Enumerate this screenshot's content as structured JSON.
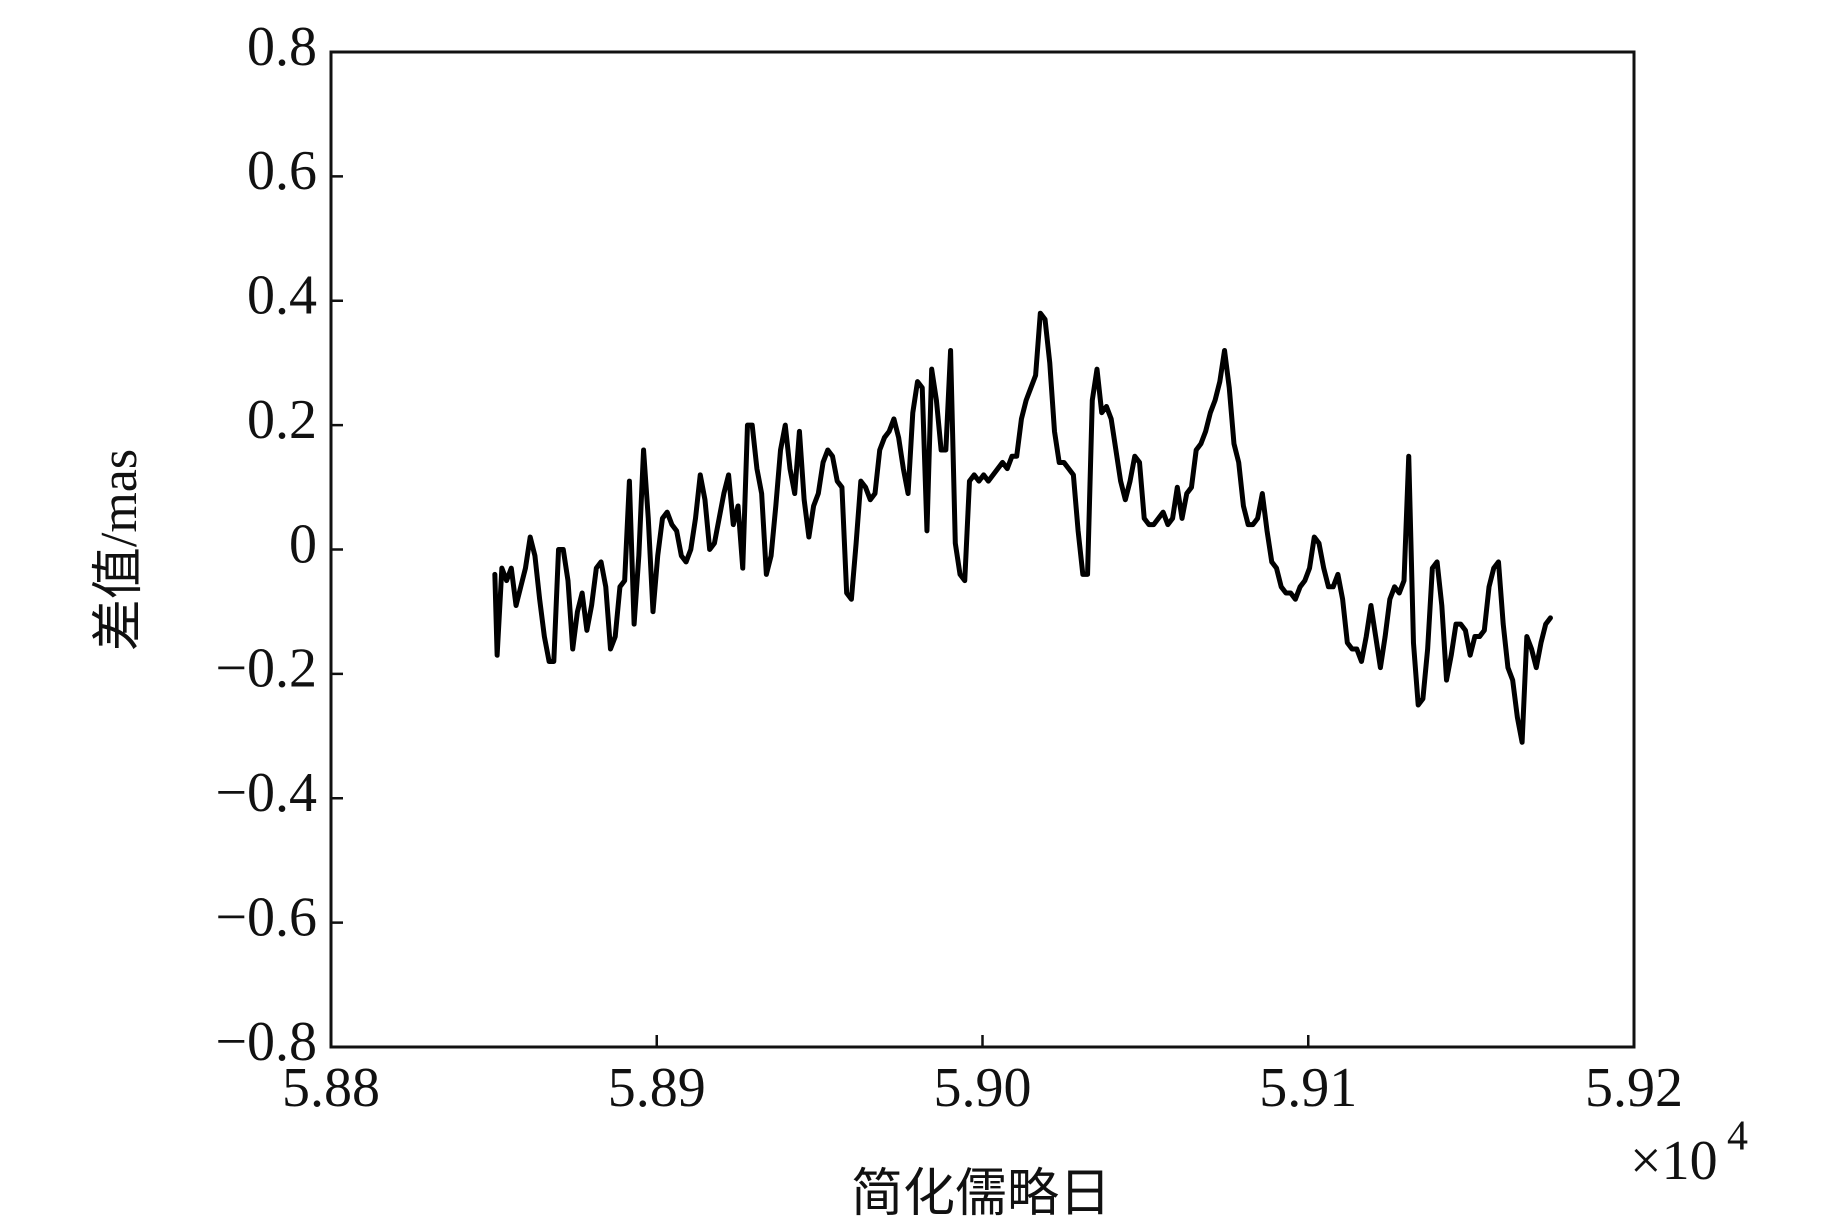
{
  "chart_data": {
    "type": "line",
    "xlabel": "简化儒略日",
    "ylabel": "差值/mas",
    "x_offset_text": "×10",
    "x_offset_exponent": "4",
    "xlim": [
      58800,
      59200
    ],
    "xticks": [
      {
        "value": 58800,
        "label": "5.88"
      },
      {
        "value": 58900,
        "label": "5.89"
      },
      {
        "value": 59000,
        "label": "5.90"
      },
      {
        "value": 59100,
        "label": "5.91"
      },
      {
        "value": 59200,
        "label": "5.92"
      }
    ],
    "ylim": [
      -0.8,
      0.8
    ],
    "yticks": [
      {
        "value": -0.8,
        "label": "−0.8"
      },
      {
        "value": -0.6,
        "label": "−0.6"
      },
      {
        "value": -0.4,
        "label": "−0.4"
      },
      {
        "value": -0.2,
        "label": "−0.2"
      },
      0,
      0.2,
      0.4,
      0.6,
      0.8
    ],
    "grid": false,
    "x": [
      58850.3,
      58851,
      58852.45,
      58853.9,
      58855.35,
      58856.8,
      58858.25,
      58859.7,
      58861.15,
      58862.6,
      58864.05,
      58865.5,
      58866.95,
      58868.4,
      58869.85,
      58871.3,
      58872.75,
      58874.2,
      58875.65,
      58877.1,
      58878.55,
      58880,
      58881.45,
      58882.9,
      58884.35,
      58885.8,
      58887.25,
      58888.7,
      58890.15,
      58891.6,
      58893.05,
      58894.5,
      58895.95,
      58897.4,
      58898.85,
      58900.3,
      58901.75,
      58903.2,
      58904.65,
      58906.1,
      58907.55,
      58909,
      58910.45,
      58911.9,
      58913.35,
      58914.8,
      58916.25,
      58917.7,
      58919.15,
      58920.6,
      58922.05,
      58923.5,
      58924.95,
      58926.4,
      58927.85,
      58929.3,
      58930.75,
      58932.2,
      58933.65,
      58935.1,
      58936.55,
      58938,
      58939.45,
      58940.9,
      58942.35,
      58943.8,
      58945.25,
      58946.7,
      58948.15,
      58949.6,
      58951.05,
      58952.5,
      58953.95,
      58955.4,
      58956.85,
      58958.3,
      58959.75,
      58961.2,
      58962.65,
      58964.1,
      58965.55,
      58967,
      58968.45,
      58969.9,
      58971.35,
      58972.8,
      58974.25,
      58975.7,
      58977.15,
      58978.6,
      58980.05,
      58981.5,
      58982.95,
      58984.4,
      58985.85,
      58987.3,
      58988.75,
      58990.2,
      58991.65,
      58993.1,
      58994.55,
      58996,
      58997.45,
      58998.9,
      59000.35,
      59001.8,
      59003.25,
      59004.7,
      59006.15,
      59007.6,
      59009.05,
      59010.5,
      59011.95,
      59013.4,
      59014.85,
      59016.3,
      59017.75,
      59019.2,
      59020.65,
      59022.1,
      59023.55,
      59025,
      59026.45,
      59027.9,
      59029.35,
      59030.8,
      59032.25,
      59033.7,
      59035.15,
      59036.6,
      59038.05,
      59039.5,
      59040.95,
      59042.4,
      59043.85,
      59045.3,
      59046.75,
      59048.2,
      59049.65,
      59051.1,
      59052.55,
      59054,
      59055.45,
      59056.9,
      59058.35,
      59059.8,
      59061.25,
      59062.7,
      59064.15,
      59065.6,
      59067.05,
      59068.5,
      59069.95,
      59071.4,
      59072.85,
      59074.3,
      59075.75,
      59077.2,
      59078.65,
      59080.1,
      59081.55,
      59083,
      59084.45,
      59085.9,
      59087.35,
      59088.8,
      59090.25,
      59091.7,
      59093.15,
      59094.6,
      59096.05,
      59097.5,
      59098.95,
      59100.4,
      59101.85,
      59103.3,
      59104.75,
      59106.2,
      59107.65,
      59109.1,
      59110.55,
      59112,
      59113.45,
      59114.9,
      59116.35,
      59117.8,
      59119.25,
      59120.7,
      59122.15,
      59123.6,
      59125.05,
      59126.5,
      59127.95,
      59129.4,
      59130.85,
      59132.3,
      59133.75,
      59135.2,
      59136.65,
      59138.1,
      59139.55,
      59141,
      59142.45,
      59143.9,
      59145.35,
      59146.8,
      59148.25,
      59149.7,
      59151.15,
      59152.6,
      59154.05,
      59155.5,
      59156.95,
      59158.4,
      59159.85,
      59161.3,
      59162.75,
      59164.2,
      59165.65,
      59167.1,
      59168.55,
      59170,
      59171.45,
      59172.9,
      59174.35
    ],
    "series": [
      {
        "color": "#000000",
        "values": [
          -0.04,
          -0.17,
          -0.03,
          -0.05,
          -0.03,
          -0.09,
          -0.06,
          -0.03,
          0.02,
          -0.01,
          -0.08,
          -0.14,
          -0.18,
          -0.18,
          0,
          0,
          -0.05,
          -0.16,
          -0.1,
          -0.07,
          -0.13,
          -0.09,
          -0.03,
          -0.02,
          -0.06,
          -0.16,
          -0.14,
          -0.06,
          -0.05,
          0.11,
          -0.12,
          -0.01,
          0.16,
          0.05,
          -0.1,
          -0.01,
          0.05,
          0.06,
          0.04,
          0.03,
          -0.01,
          -0.02,
          0,
          0.05,
          0.12,
          0.08,
          0,
          0.01,
          0.05,
          0.09,
          0.12,
          0.04,
          0.07,
          -0.03,
          0.2,
          0.2,
          0.13,
          0.09,
          -0.04,
          -0.01,
          0.07,
          0.16,
          0.2,
          0.13,
          0.09,
          0.19,
          0.08,
          0.02,
          0.07,
          0.09,
          0.14,
          0.16,
          0.15,
          0.11,
          0.1,
          -0.07,
          -0.08,
          0.01,
          0.11,
          0.1,
          0.08,
          0.09,
          0.16,
          0.18,
          0.19,
          0.21,
          0.18,
          0.13,
          0.09,
          0.22,
          0.27,
          0.26,
          0.03,
          0.29,
          0.24,
          0.16,
          0.16,
          0.32,
          0.01,
          -0.04,
          -0.05,
          0.11,
          0.12,
          0.11,
          0.12,
          0.11,
          0.12,
          0.13,
          0.14,
          0.13,
          0.15,
          0.15,
          0.21,
          0.24,
          0.26,
          0.28,
          0.38,
          0.37,
          0.3,
          0.19,
          0.14,
          0.14,
          0.13,
          0.12,
          0.03,
          -0.04,
          -0.04,
          0.24,
          0.29,
          0.22,
          0.23,
          0.21,
          0.16,
          0.11,
          0.08,
          0.11,
          0.15,
          0.14,
          0.05,
          0.04,
          0.04,
          0.05,
          0.06,
          0.04,
          0.05,
          0.1,
          0.05,
          0.09,
          0.1,
          0.16,
          0.17,
          0.19,
          0.22,
          0.24,
          0.27,
          0.32,
          0.26,
          0.17,
          0.14,
          0.07,
          0.04,
          0.04,
          0.05,
          0.09,
          0.03,
          -0.02,
          -0.03,
          -0.06,
          -0.07,
          -0.07,
          -0.08,
          -0.06,
          -0.05,
          -0.03,
          0.02,
          0.01,
          -0.03,
          -0.06,
          -0.06,
          -0.04,
          -0.08,
          -0.15,
          -0.16,
          -0.16,
          -0.18,
          -0.14,
          -0.09,
          -0.14,
          -0.19,
          -0.14,
          -0.08,
          -0.06,
          -0.07,
          -0.05,
          0.15,
          -0.15,
          -0.25,
          -0.24,
          -0.16,
          -0.03,
          -0.02,
          -0.09,
          -0.21,
          -0.17,
          -0.12,
          -0.12,
          -0.13,
          -0.17,
          -0.14,
          -0.14,
          -0.13,
          -0.06,
          -0.03,
          -0.02,
          -0.12,
          -0.19,
          -0.21,
          -0.27,
          -0.31,
          -0.14,
          -0.16,
          -0.19,
          -0.15,
          -0.12,
          -0.11
        ]
      }
    ]
  }
}
